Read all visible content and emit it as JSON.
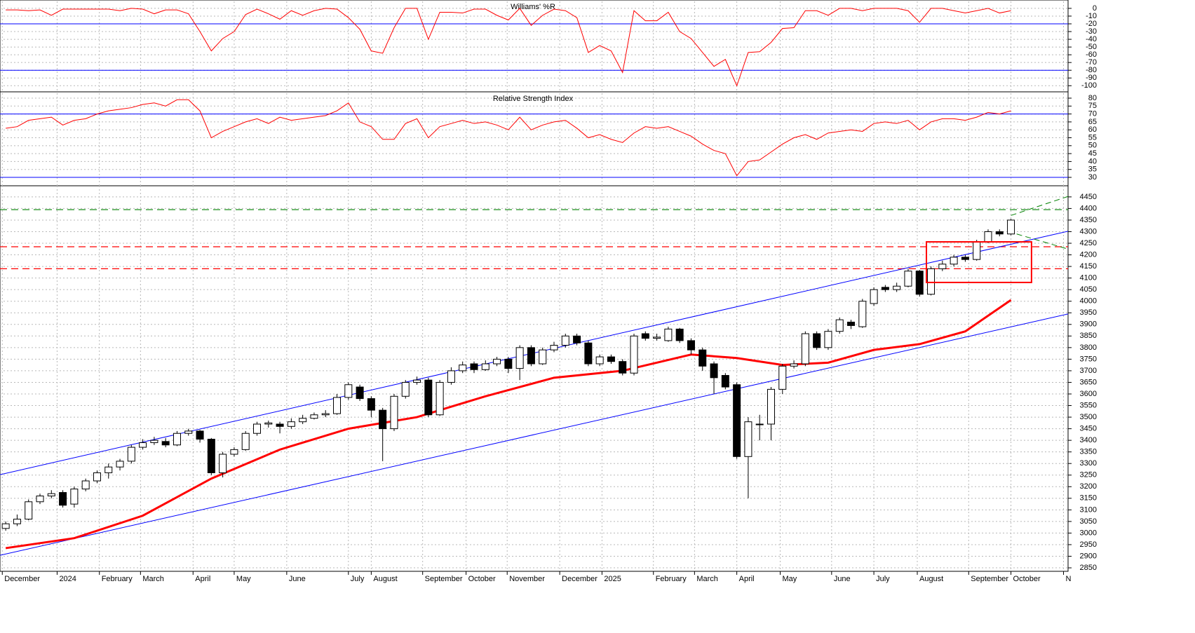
{
  "chart_data": [
    {
      "type": "line",
      "title": "Williams' %R",
      "values": [
        -2,
        -2,
        -3,
        -2,
        -9,
        -1,
        -1,
        -1,
        -1,
        -1,
        -3,
        0,
        -1,
        -7,
        -2,
        -2,
        -7,
        -30,
        -55,
        -39,
        -30,
        -8,
        -1,
        -7,
        -14,
        -3,
        -9,
        -3,
        0,
        -1,
        -12,
        -27,
        -55,
        -58,
        -25,
        0,
        0,
        -40,
        -5,
        -5,
        -6,
        -1,
        -1,
        -9,
        -15,
        0,
        -22,
        -9,
        -1,
        -3,
        -12,
        -57,
        -48,
        -55,
        -83,
        -3,
        -16,
        -16,
        -5,
        -30,
        -39,
        -57,
        -75,
        -66,
        -100,
        -57,
        -56,
        -44,
        -26,
        -25,
        -3,
        -3,
        -9,
        0,
        0,
        -3,
        0,
        0,
        0,
        -3,
        -18,
        0,
        0,
        -3,
        -6,
        -3,
        0,
        -6,
        -3
      ],
      "color": "#ff0000",
      "ylim": [
        -107,
        9
      ],
      "yticks": [
        0,
        -10,
        -20,
        -30,
        -40,
        -50,
        -60,
        -70,
        -80,
        -90,
        -100
      ],
      "levels": [
        -20,
        -80
      ],
      "level_color": "#0000ff",
      "grid": true
    },
    {
      "type": "line",
      "title": "Relative Strength Index",
      "values": [
        61,
        62,
        66,
        67,
        68,
        63,
        66,
        67,
        70,
        72,
        73,
        74,
        76,
        77,
        75,
        79,
        79,
        72,
        55,
        59,
        62,
        65,
        67,
        64,
        68,
        66,
        67,
        68,
        69,
        72,
        77,
        65,
        62,
        54,
        54,
        64,
        67,
        55,
        62,
        64,
        66,
        64,
        65,
        63,
        60,
        68,
        60,
        63,
        65,
        66,
        61,
        55,
        57,
        54,
        52,
        58,
        62,
        61,
        62,
        59,
        56,
        51,
        47,
        45,
        31,
        40,
        41,
        46,
        51,
        55,
        57,
        54,
        58,
        59,
        60,
        59,
        64,
        65,
        64,
        66,
        60,
        65,
        67,
        67,
        66,
        68,
        71,
        70,
        72
      ],
      "color": "#ff0000",
      "ylim": [
        24.7,
        83.1
      ],
      "yticks": [
        30,
        35,
        40,
        45,
        50,
        55,
        60,
        65,
        70,
        75,
        80
      ],
      "levels": [
        70,
        30
      ],
      "level_color": "#0000ff",
      "grid": true
    },
    {
      "type": "candlestick",
      "open": [
        3020,
        3040,
        3060,
        3135,
        3160,
        3175,
        3125,
        3190,
        3225,
        3260,
        3285,
        3310,
        3370,
        3390,
        3395,
        3380,
        3430,
        3440,
        3405,
        3260,
        3340,
        3360,
        3430,
        3470,
        3470,
        3460,
        3480,
        3495,
        3510,
        3515,
        3585,
        3630,
        3580,
        3530,
        3450,
        3590,
        3650,
        3660,
        3510,
        3650,
        3700,
        3730,
        3705,
        3730,
        3750,
        3710,
        3800,
        3730,
        3790,
        3810,
        3850,
        3820,
        3730,
        3760,
        3740,
        3690,
        3860,
        3840,
        3830,
        3880,
        3830,
        3790,
        3730,
        3680,
        3640,
        3330,
        3470,
        3470,
        3620,
        3720,
        3730,
        3860,
        3800,
        3870,
        3910,
        3890,
        3990,
        4060,
        4050,
        4065,
        4130,
        4030,
        4140,
        4160,
        4190,
        4180,
        4255,
        4300,
        4290
      ],
      "high": [
        3050,
        3080,
        3145,
        3170,
        3185,
        3185,
        3200,
        3235,
        3270,
        3300,
        3320,
        3380,
        3405,
        3415,
        3410,
        3440,
        3450,
        3445,
        3410,
        3350,
        3370,
        3440,
        3480,
        3485,
        3480,
        3495,
        3510,
        3520,
        3530,
        3600,
        3650,
        3640,
        3590,
        3540,
        3600,
        3660,
        3675,
        3670,
        3660,
        3715,
        3740,
        3740,
        3745,
        3760,
        3760,
        3810,
        3810,
        3800,
        3825,
        3860,
        3860,
        3830,
        3770,
        3770,
        3750,
        3860,
        3870,
        3860,
        3890,
        3885,
        3840,
        3800,
        3740,
        3690,
        3650,
        3500,
        3510,
        3630,
        3730,
        3745,
        3870,
        3870,
        3880,
        3930,
        3920,
        4010,
        4060,
        4070,
        4080,
        4140,
        4135,
        4150,
        4175,
        4200,
        4200,
        4265,
        4310,
        4310,
        4355
      ],
      "low": [
        3010,
        3030,
        3055,
        3125,
        3150,
        3110,
        3110,
        3180,
        3215,
        3235,
        3270,
        3300,
        3360,
        3380,
        3370,
        3375,
        3420,
        3390,
        3250,
        3240,
        3330,
        3355,
        3420,
        3455,
        3430,
        3450,
        3470,
        3490,
        3500,
        3510,
        3575,
        3570,
        3500,
        3310,
        3440,
        3580,
        3640,
        3500,
        3505,
        3640,
        3690,
        3690,
        3700,
        3720,
        3690,
        3660,
        3720,
        3725,
        3780,
        3800,
        3810,
        3720,
        3720,
        3730,
        3680,
        3680,
        3830,
        3830,
        3825,
        3820,
        3770,
        3700,
        3600,
        3620,
        3320,
        3150,
        3400,
        3400,
        3600,
        3710,
        3720,
        3790,
        3790,
        3860,
        3880,
        3885,
        3980,
        4040,
        4040,
        4060,
        4020,
        4025,
        4130,
        4150,
        4170,
        4175,
        4250,
        4280,
        4285
      ],
      "close": [
        3040,
        3060,
        3135,
        3160,
        3170,
        3120,
        3190,
        3225,
        3260,
        3285,
        3310,
        3370,
        3390,
        3400,
        3380,
        3430,
        3440,
        3405,
        3260,
        3340,
        3360,
        3430,
        3470,
        3475,
        3460,
        3480,
        3495,
        3510,
        3515,
        3585,
        3640,
        3580,
        3530,
        3450,
        3590,
        3650,
        3660,
        3510,
        3650,
        3700,
        3725,
        3705,
        3730,
        3750,
        3710,
        3800,
        3730,
        3790,
        3810,
        3850,
        3820,
        3730,
        3760,
        3740,
        3690,
        3850,
        3840,
        3845,
        3880,
        3830,
        3790,
        3720,
        3670,
        3630,
        3330,
        3480,
        3470,
        3620,
        3720,
        3730,
        3860,
        3800,
        3870,
        3920,
        3895,
        4000,
        4050,
        4050,
        4065,
        4130,
        4030,
        4140,
        4160,
        4190,
        4180,
        4255,
        4300,
        4290,
        4350
      ],
      "up_color": "#ffffff",
      "down_color": "#000000",
      "xlim": [
        -0.5,
        93
      ],
      "xticks": [
        {
          "value": -0.3,
          "label": "December"
        },
        {
          "value": 4.5,
          "label": "2024"
        },
        {
          "value": 8.2,
          "label": "February"
        },
        {
          "value": 11.8,
          "label": "March"
        },
        {
          "value": 16.4,
          "label": "April"
        },
        {
          "value": 20,
          "label": "May"
        },
        {
          "value": 24.6,
          "label": "June"
        },
        {
          "value": 30,
          "label": "July"
        },
        {
          "value": 32,
          "label": "August"
        },
        {
          "value": 36.5,
          "label": "September"
        },
        {
          "value": 40.3,
          "label": "October"
        },
        {
          "value": 43.9,
          "label": "November"
        },
        {
          "value": 48.5,
          "label": "December"
        },
        {
          "value": 52.2,
          "label": "2025"
        },
        {
          "value": 56.7,
          "label": "February"
        },
        {
          "value": 60.3,
          "label": "March"
        },
        {
          "value": 64,
          "label": "April"
        },
        {
          "value": 67.8,
          "label": "May"
        },
        {
          "value": 72.3,
          "label": "June"
        },
        {
          "value": 76,
          "label": "July"
        },
        {
          "value": 79.8,
          "label": "August"
        },
        {
          "value": 84.3,
          "label": "September"
        },
        {
          "value": 88,
          "label": "October"
        },
        {
          "value": 92.6,
          "label": "N"
        }
      ],
      "ylim": [
        2835,
        4498
      ],
      "yticks": [
        2850,
        2900,
        2950,
        3000,
        3050,
        3100,
        3150,
        3200,
        3250,
        3300,
        3350,
        3400,
        3450,
        3500,
        3550,
        3600,
        3650,
        3700,
        3750,
        3800,
        3850,
        3900,
        3950,
        4000,
        4050,
        4100,
        4150,
        4200,
        4250,
        4300,
        4350,
        4400,
        4450
      ],
      "grid": true,
      "moving_average": {
        "x": [
          0,
          6,
          12,
          18,
          24,
          30,
          36,
          42,
          48,
          54,
          60,
          64,
          68,
          72,
          76,
          80,
          84,
          88
        ],
        "values": [
          2935,
          2978,
          3075,
          3235,
          3360,
          3450,
          3500,
          3590,
          3670,
          3700,
          3770,
          3755,
          3725,
          3735,
          3790,
          3815,
          3870,
          4005
        ],
        "color": "#ff0000"
      },
      "channels": [
        {
          "x": [
            -0.5,
            93
          ],
          "values": [
            3252,
            4302
          ],
          "color": "#0000ff"
        },
        {
          "x": [
            -0.5,
            93
          ],
          "values": [
            2904,
            3945
          ],
          "color": "#0000ff"
        }
      ],
      "levels": [
        {
          "value": 4395,
          "color": "#008000"
        },
        {
          "value": 4235,
          "color": "#ff0000"
        },
        {
          "value": 4140,
          "color": "#ff0000"
        }
      ],
      "projections": [
        {
          "x": [
            88,
            93
          ],
          "values": [
            4370,
            4452
          ],
          "color": "#008000"
        },
        {
          "x": [
            88.5,
            93
          ],
          "values": [
            4290,
            4225
          ],
          "color": "#008000"
        }
      ],
      "box": {
        "x": [
          80.6,
          89.8
        ],
        "values": [
          4256,
          4081
        ],
        "color": "#ff0000"
      }
    }
  ]
}
